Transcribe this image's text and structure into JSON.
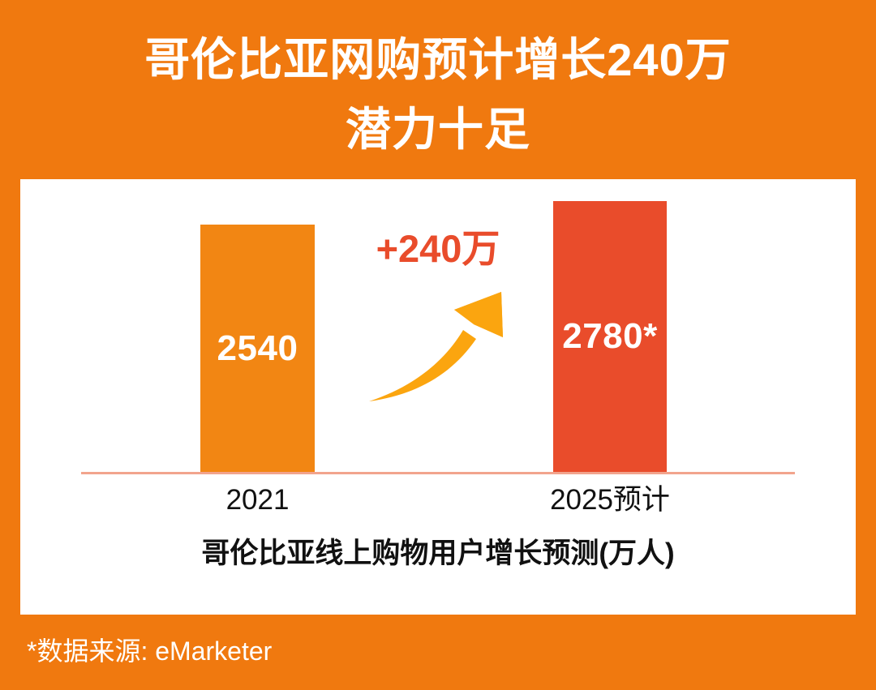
{
  "title": {
    "line1": "哥伦比亚网购预计增长240万",
    "line2": "潜力十足"
  },
  "colors": {
    "background": "#F0790F",
    "card": "#FFFFFF",
    "bar_2021": "#F28613",
    "bar_2025": "#E94C2B",
    "growth_text": "#E94C2B",
    "arrow": "#FBA50F",
    "baseline": "#F2A48D",
    "axis_text": "#111111",
    "title_text": "#FFFFFF"
  },
  "chart_data": {
    "type": "bar",
    "title": "哥伦比亚线上购物用户增长预测(万人)",
    "categories": [
      "2021",
      "2025预计"
    ],
    "values": [
      2540,
      2780
    ],
    "unit": "万人",
    "ylim": [
      0,
      2780
    ],
    "grid": false,
    "legend": false,
    "annotation": "+240万",
    "bars": [
      {
        "category": "2021",
        "value": 2540,
        "label": "2540",
        "color": "#F28613"
      },
      {
        "category": "2025预计",
        "value": 2780,
        "label": "2780*",
        "color": "#E94C2B"
      }
    ]
  },
  "footer": {
    "source_note": "*数据来源: eMarketer"
  }
}
